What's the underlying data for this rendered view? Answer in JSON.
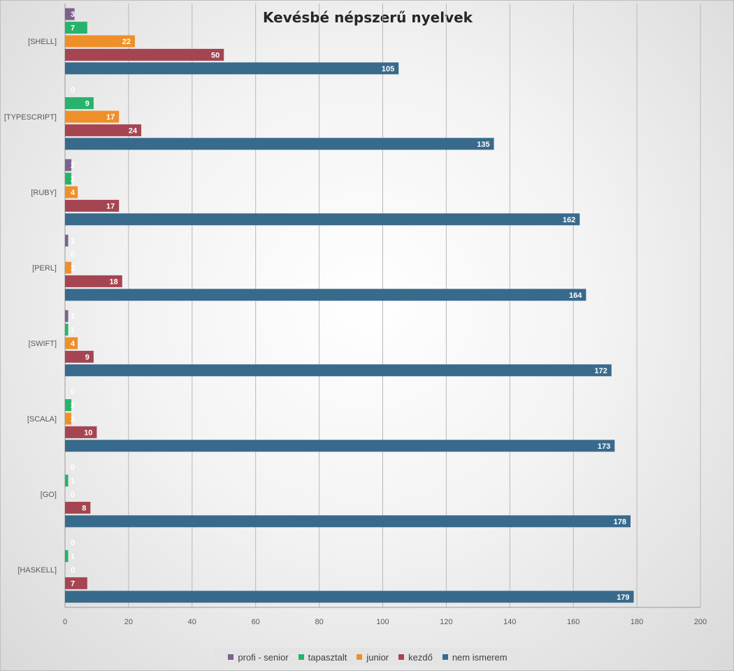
{
  "chart_data": {
    "type": "bar",
    "orientation": "horizontal",
    "title": "Kevésbé népszerű nyelvek",
    "categories": [
      "[SHELL]",
      "[TYPESCRIPT]",
      "[RUBY]",
      "[PERL]",
      "[SWIFT]",
      "[SCALA]",
      "[GO]",
      "[HASKELL]"
    ],
    "series": [
      {
        "name": "profi - senior",
        "color": "#7b6190",
        "values": [
          3,
          0,
          2,
          1,
          1,
          0,
          0,
          0
        ]
      },
      {
        "name": "tapasztalt",
        "color": "#27b36b",
        "values": [
          7,
          9,
          2,
          0,
          1,
          2,
          1,
          1
        ]
      },
      {
        "name": "junior",
        "color": "#ef8f2a",
        "values": [
          22,
          17,
          4,
          2,
          4,
          2,
          0,
          0
        ]
      },
      {
        "name": "kezdő",
        "color": "#a64552",
        "values": [
          50,
          24,
          17,
          18,
          9,
          10,
          8,
          7
        ]
      },
      {
        "name": "nem ismerem",
        "color": "#386a8c",
        "values": [
          105,
          135,
          162,
          164,
          172,
          173,
          178,
          179
        ]
      }
    ],
    "xlim": [
      0,
      200
    ],
    "xticks": [
      0,
      20,
      40,
      60,
      80,
      100,
      120,
      140,
      160,
      180,
      200
    ],
    "xlabel": "",
    "ylabel": "",
    "grid": true,
    "legend_position": "bottom",
    "data_labels": true
  }
}
